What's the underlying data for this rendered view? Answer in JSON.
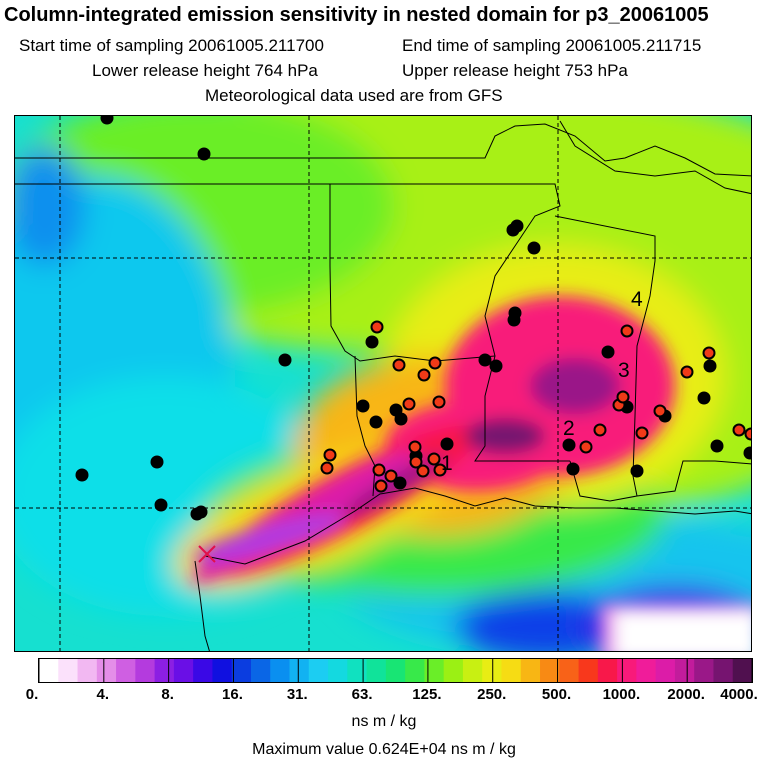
{
  "title": "Column-integrated emission sensitivity in nested domain for p3_20061005",
  "sampling": {
    "start": "Start time of sampling 20061005.211700",
    "end": "End time of sampling 20061005.211715"
  },
  "release": {
    "lower": "Lower release height  764 hPa",
    "upper": "Upper release height  753 hPa"
  },
  "met_note": "Meteorological data used are from GFS",
  "colorbar": {
    "ticks": [
      "0.",
      "4.",
      "8.",
      "16.",
      "31.",
      "63.",
      "125.",
      "250.",
      "500.",
      "1000.",
      "2000.",
      "4000."
    ],
    "colors": [
      "#ffffff",
      "#fbe1fb",
      "#f2b8f2",
      "#e48ee8",
      "#cf5fe2",
      "#b43bde",
      "#8c1fe3",
      "#6a0fe6",
      "#3a08e6",
      "#1010e0",
      "#0b3de0",
      "#0a66e6",
      "#0a8ff0",
      "#12b2f2",
      "#1ccdf2",
      "#14d9e0",
      "#10e1c0",
      "#10e39a",
      "#18e574",
      "#38e94a",
      "#6aee28",
      "#9bf014",
      "#c8f012",
      "#e8ed14",
      "#f6dc14",
      "#f8b614",
      "#f88a14",
      "#f86218",
      "#f8381c",
      "#f8184a",
      "#f81a7a",
      "#f01c9a",
      "#dc1ca8",
      "#c21c9c",
      "#9a1888",
      "#761470",
      "#50104f"
    ],
    "units": "ns m / kg"
  },
  "max_value": "Maximum value  0.624E+04 ns m / kg",
  "map": {
    "labels": [
      "1",
      "2",
      "3",
      "4"
    ],
    "black_point_count": 33,
    "red_point_count": 27
  }
}
